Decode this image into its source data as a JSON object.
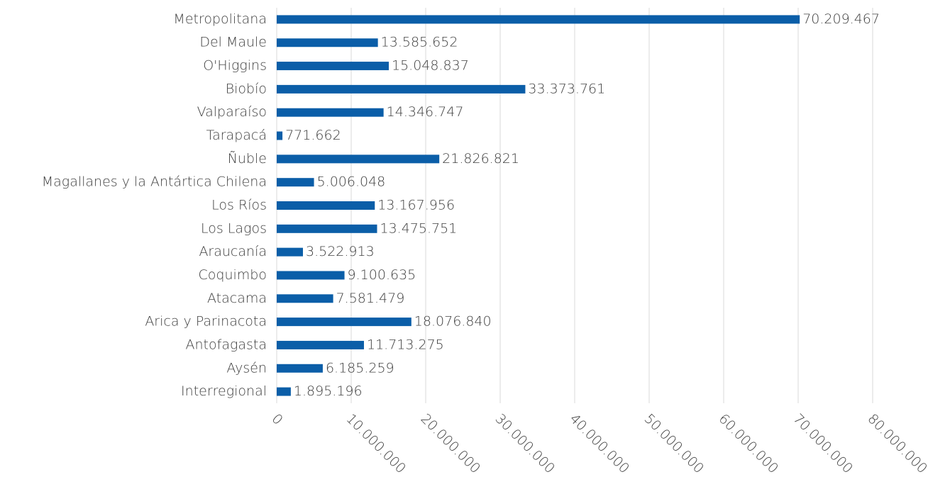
{
  "chart_data": {
    "type": "bar",
    "orientation": "horizontal",
    "categories": [
      "Metropolitana",
      "Del Maule",
      "O'Higgins",
      "Biobío",
      "Valparaíso",
      "Tarapacá",
      "Ñuble",
      "Magallanes y la Antártica Chilena",
      "Los Ríos",
      "Los Lagos",
      "Araucanía",
      "Coquimbo",
      "Atacama",
      "Arica y Parinacota",
      "Antofagasta",
      "Aysén",
      "Interregional"
    ],
    "values": [
      70209467,
      13585652,
      15048837,
      33373761,
      14346747,
      771662,
      21826821,
      5006048,
      13167956,
      13475751,
      3522913,
      9100635,
      7581479,
      18076840,
      11713275,
      6185259,
      1895196
    ],
    "value_labels": [
      "70.209.467",
      "13.585.652",
      "15.048.837",
      "33.373.761",
      "14.346.747",
      "771.662",
      "21.826.821",
      "5.006.048",
      "13.167.956",
      "13.475.751",
      "3.522.913",
      "9.100.635",
      "7.581.479",
      "18.076.840",
      "11.713.275",
      "6.185.259",
      "1.895.196"
    ],
    "color": "#0b5ea8",
    "xlim": [
      0,
      80000000
    ],
    "xticks": [
      0,
      {
        "value": 10000000,
        "label": "10.000.000"
      },
      {
        "value": 20000000,
        "label": "20.000.000"
      },
      {
        "value": 30000000,
        "label": "30.000.000"
      },
      {
        "value": 40000000,
        "label": "40.000.000"
      },
      {
        "value": 50000000,
        "label": "50.000.000"
      },
      {
        "value": 60000000,
        "label": "60.000.000"
      },
      {
        "value": 70000000,
        "label": "70.000.000"
      },
      {
        "value": 80000000,
        "label": "80.000.000"
      }
    ],
    "grid": true
  }
}
